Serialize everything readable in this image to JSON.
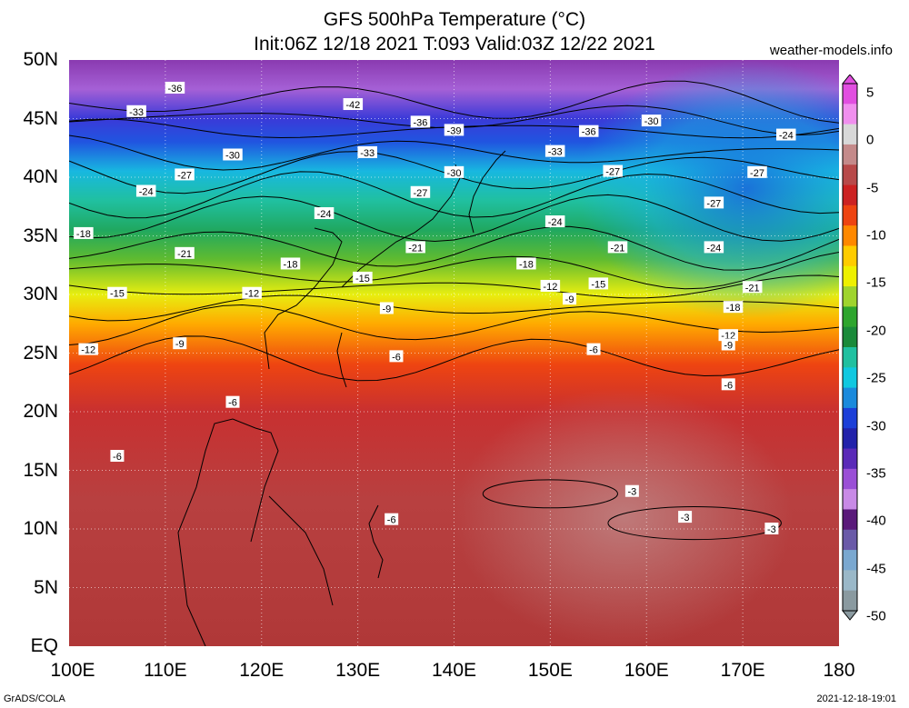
{
  "title_line1": "GFS 500hPa Temperature (°C)",
  "title_line2": "Init:06Z 12/18 2021 T:093 Valid:03Z 12/22 2021",
  "site": "weather-models.info",
  "footer_left": "GrADS/COLA",
  "footer_right": "2021-12-18-19:01",
  "lat_labels": [
    "50N",
    "45N",
    "40N",
    "35N",
    "30N",
    "25N",
    "20N",
    "15N",
    "10N",
    "5N",
    "EQ"
  ],
  "lon_labels": [
    "100E",
    "110E",
    "120E",
    "130E",
    "140E",
    "150E",
    "160E",
    "170E",
    "180"
  ],
  "colorbar": {
    "labels": [
      "5",
      "0",
      "-5",
      "-10",
      "-15",
      "-20",
      "-25",
      "-30",
      "-35",
      "-40",
      "-45",
      "-50"
    ],
    "colors": [
      "#e14fe0",
      "#f08fee",
      "#d8d8d8",
      "#c48a8a",
      "#b84a4a",
      "#cc2222",
      "#ee4411",
      "#ff8800",
      "#ffcc00",
      "#eef000",
      "#9fd42e",
      "#2ea52e",
      "#1a8a3a",
      "#20c0a0",
      "#10c8e0",
      "#1a8adc",
      "#1c3fd8",
      "#2222aa",
      "#5a2ab8",
      "#9a4fd6",
      "#c88ae6",
      "#5a1a7a",
      "#6a5aa8",
      "#7aa8d0",
      "#9ab8c8",
      "#8a9aa0"
    ]
  },
  "contours": [
    {
      "label": "-42",
      "lat": 46.5
    },
    {
      "label": "-39",
      "lat": 45
    },
    {
      "label": "-36",
      "lat": 44
    },
    {
      "label": "-33",
      "lat": 42
    },
    {
      "label": "-30",
      "lat": 40.5
    },
    {
      "label": "-27",
      "lat": 38.5
    },
    {
      "label": "-24",
      "lat": 36.5
    },
    {
      "label": "-21",
      "lat": 34
    },
    {
      "label": "-18",
      "lat": 32
    },
    {
      "label": "-15",
      "lat": 30.5
    },
    {
      "label": "-12",
      "lat": 29
    },
    {
      "label": "-9",
      "lat": 27.5
    },
    {
      "label": "-6",
      "lat": 24.5
    },
    {
      "label": "-3",
      "lat": 13
    }
  ],
  "contour_labels": [
    {
      "text": "-36",
      "lon": 111.0,
      "lat": 47.6
    },
    {
      "text": "-42",
      "lon": 129.5,
      "lat": 46.2
    },
    {
      "text": "-33",
      "lon": 107.0,
      "lat": 45.6
    },
    {
      "text": "-36",
      "lon": 136.5,
      "lat": 44.7
    },
    {
      "text": "-39",
      "lon": 140.0,
      "lat": 44.0
    },
    {
      "text": "-36",
      "lon": 154.0,
      "lat": 43.9
    },
    {
      "text": "-30",
      "lon": 160.5,
      "lat": 44.8
    },
    {
      "text": "-24",
      "lon": 174.5,
      "lat": 43.6
    },
    {
      "text": "-30",
      "lon": 117.0,
      "lat": 41.9
    },
    {
      "text": "-33",
      "lon": 131.0,
      "lat": 42.1
    },
    {
      "text": "-33",
      "lon": 150.5,
      "lat": 42.2
    },
    {
      "text": "-30",
      "lon": 140.0,
      "lat": 40.4
    },
    {
      "text": "-27",
      "lon": 156.5,
      "lat": 40.5
    },
    {
      "text": "-27",
      "lon": 171.5,
      "lat": 40.4
    },
    {
      "text": "-27",
      "lon": 112.0,
      "lat": 40.2
    },
    {
      "text": "-24",
      "lon": 108.0,
      "lat": 38.8
    },
    {
      "text": "-27",
      "lon": 136.5,
      "lat": 38.7
    },
    {
      "text": "-27",
      "lon": 167.0,
      "lat": 37.8
    },
    {
      "text": "-24",
      "lon": 126.5,
      "lat": 36.9
    },
    {
      "text": "-24",
      "lon": 150.5,
      "lat": 36.2
    },
    {
      "text": "-18",
      "lon": 101.5,
      "lat": 35.2
    },
    {
      "text": "-21",
      "lon": 136.0,
      "lat": 34.0
    },
    {
      "text": "-21",
      "lon": 157.0,
      "lat": 34.0
    },
    {
      "text": "-24",
      "lon": 167.0,
      "lat": 34.0
    },
    {
      "text": "-21",
      "lon": 112.0,
      "lat": 33.5
    },
    {
      "text": "-18",
      "lon": 123.0,
      "lat": 32.6
    },
    {
      "text": "-18",
      "lon": 147.5,
      "lat": 32.6
    },
    {
      "text": "-15",
      "lon": 130.5,
      "lat": 31.4
    },
    {
      "text": "-15",
      "lon": 155.0,
      "lat": 30.9
    },
    {
      "text": "-12",
      "lon": 150.0,
      "lat": 30.7
    },
    {
      "text": "-21",
      "lon": 171.0,
      "lat": 30.6
    },
    {
      "text": "-15",
      "lon": 105.0,
      "lat": 30.1
    },
    {
      "text": "-12",
      "lon": 119.0,
      "lat": 30.1
    },
    {
      "text": "-9",
      "lon": 152.0,
      "lat": 29.6
    },
    {
      "text": "-18",
      "lon": 169.0,
      "lat": 28.9
    },
    {
      "text": "-9",
      "lon": 133.0,
      "lat": 28.8
    },
    {
      "text": "-12",
      "lon": 168.5,
      "lat": 26.5
    },
    {
      "text": "-9",
      "lon": 168.5,
      "lat": 25.7
    },
    {
      "text": "-9",
      "lon": 111.5,
      "lat": 25.8
    },
    {
      "text": "-12",
      "lon": 102.0,
      "lat": 25.3
    },
    {
      "text": "-6",
      "lon": 134.0,
      "lat": 24.7
    },
    {
      "text": "-6",
      "lon": 154.5,
      "lat": 25.3
    },
    {
      "text": "-6",
      "lon": 168.5,
      "lat": 22.3
    },
    {
      "text": "-6",
      "lon": 117.0,
      "lat": 20.8
    },
    {
      "text": "-6",
      "lon": 105.0,
      "lat": 16.2
    },
    {
      "text": "-3",
      "lon": 158.5,
      "lat": 13.2
    },
    {
      "text": "-6",
      "lon": 133.5,
      "lat": 10.8
    },
    {
      "text": "-3",
      "lon": 164.0,
      "lat": 11.0
    },
    {
      "text": "-3",
      "lon": 173.0,
      "lat": 10.0
    }
  ]
}
